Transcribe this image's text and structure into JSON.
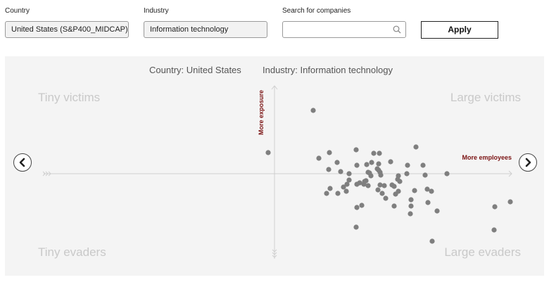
{
  "filters": {
    "country_label": "Country",
    "country_value": "United States (S&P400_MIDCAP)",
    "industry_label": "Industry",
    "industry_value": "Information technology",
    "search_label": "Search for companies",
    "search_value": "",
    "apply_label": "Apply"
  },
  "chart_header": {
    "country": "Country: United States",
    "industry": "Industry: Information technology"
  },
  "quadrants": {
    "top_left": "Tiny victims",
    "top_right": "Large victims",
    "bottom_left": "Tiny evaders",
    "bottom_right": "Large evaders"
  },
  "axes": {
    "y_label": "More exposure",
    "x_label": "More employees"
  },
  "colors": {
    "point": "#7f7f7f",
    "axis_label": "#7a1212",
    "panel_bg": "#f4f4f4"
  },
  "icons": {
    "search": "search-icon",
    "prev": "chevron-left-icon",
    "next": "chevron-right-icon"
  },
  "chart_data": {
    "type": "scatter",
    "xlabel": "More employees",
    "ylabel": "More exposure",
    "xlim": [
      -330,
      340
    ],
    "ylim": [
      -120,
      130
    ],
    "points": [
      [
        -9,
        30
      ],
      [
        55,
        90
      ],
      [
        63,
        22
      ],
      [
        78,
        30
      ],
      [
        77,
        6
      ],
      [
        74,
        -28
      ],
      [
        79,
        -21
      ],
      [
        90,
        -28
      ],
      [
        94,
        3
      ],
      [
        89,
        16
      ],
      [
        98,
        -19
      ],
      [
        102,
        -25
      ],
      [
        106,
        -9
      ],
      [
        103,
        -15
      ],
      [
        106,
        0
      ],
      [
        116,
        34
      ],
      [
        117,
        -48
      ],
      [
        117,
        12
      ],
      [
        116,
        -76
      ],
      [
        117,
        -15
      ],
      [
        121,
        -13
      ],
      [
        124,
        -45
      ],
      [
        127,
        -15
      ],
      [
        130,
        -10
      ],
      [
        133,
        -17
      ],
      [
        128,
        -11
      ],
      [
        131,
        13
      ],
      [
        138,
        16
      ],
      [
        133,
        2
      ],
      [
        135,
        1
      ],
      [
        137,
        -3
      ],
      [
        141,
        29
      ],
      [
        148,
        14
      ],
      [
        150,
        2
      ],
      [
        148,
        5
      ],
      [
        149,
        29
      ],
      [
        146,
        7
      ],
      [
        151,
        -2
      ],
      [
        150,
        -16
      ],
      [
        147,
        -23
      ],
      [
        153,
        -28
      ],
      [
        156,
        -17
      ],
      [
        158,
        -35
      ],
      [
        165,
        17
      ],
      [
        167,
        -16
      ],
      [
        172,
        -29
      ],
      [
        170,
        -46
      ],
      [
        170,
        -18
      ],
      [
        175,
        -8
      ],
      [
        178,
        -11
      ],
      [
        176,
        -3
      ],
      [
        176,
        -25
      ],
      [
        188,
        0
      ],
      [
        189,
        12
      ],
      [
        193,
        -57
      ],
      [
        194,
        -37
      ],
      [
        194,
        -46
      ],
      [
        199,
        -24
      ],
      [
        201,
        38
      ],
      [
        211,
        12
      ],
      [
        214,
        -2
      ],
      [
        217,
        -22
      ],
      [
        223,
        -25
      ],
      [
        218,
        -41
      ],
      [
        224,
        -96
      ],
      [
        231,
        -53
      ],
      [
        245,
        0
      ],
      [
        313,
        -47
      ],
      [
        312,
        -80
      ],
      [
        335,
        -40
      ]
    ]
  }
}
